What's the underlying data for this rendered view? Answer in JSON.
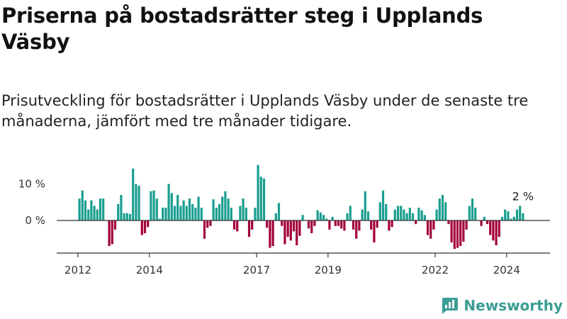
{
  "title": "Priserna på bostadsrätter steg i Upplands Väsby",
  "subtitle": "Prisutveckling för bostadsrätter i Upplands Väsby under de senaste tre månaderna, jämfört med tre månader tidigare.",
  "brand": "Newsworthy",
  "colors": {
    "positive": "#1a9e8f",
    "negative": "#a3003a",
    "axis": "#333333",
    "brand": "#3a9d93"
  },
  "chart_data": {
    "type": "bar",
    "title": "Priserna på bostadsrätter steg i Upplands Väsby",
    "ylabel": "",
    "xlabel": "",
    "ylim": [
      -9.5,
      16
    ],
    "yticks": [
      {
        "value": 0,
        "label": "0 %"
      },
      {
        "value": 10,
        "label": "10 %"
      }
    ],
    "x_start": 2012.0,
    "x_step_months": 1,
    "xticks": [
      {
        "value": 2012,
        "label": "2012"
      },
      {
        "value": 2014,
        "label": "2014"
      },
      {
        "value": 2017,
        "label": "2017"
      },
      {
        "value": 2019,
        "label": "2019"
      },
      {
        "value": 2022,
        "label": "2022"
      },
      {
        "value": 2024,
        "label": "2024"
      }
    ],
    "annotation": {
      "label": "2 %",
      "value": 2
    },
    "values": [
      6,
      8.2,
      5.5,
      3,
      5.5,
      4,
      3,
      6,
      6,
      0,
      -7,
      -6.5,
      -2.5,
      4.5,
      7,
      2,
      2,
      1.8,
      14.2,
      10,
      9.5,
      -4,
      -3.5,
      -1.8,
      8,
      8.2,
      6,
      0.5,
      3.5,
      3.5,
      10,
      7.5,
      4,
      7,
      4,
      5.5,
      4,
      6,
      4.5,
      3.5,
      6.5,
      3.5,
      -5,
      -2,
      -1.5,
      5.8,
      3.5,
      4.5,
      6.5,
      8,
      6,
      3.5,
      -2.5,
      -3,
      4,
      6,
      3.5,
      -4.5,
      -2.5,
      3.5,
      15.2,
      12,
      11.5,
      -2,
      -7.5,
      -7,
      2,
      4.8,
      -1.5,
      -6.5,
      -4.5,
      -5.5,
      -3,
      -6.8,
      -4.2,
      1.5,
      0,
      -2.2,
      -3.5,
      -1.5,
      2.8,
      2.2,
      1.5,
      0.5,
      -2.5,
      1,
      -1.5,
      -1.5,
      -2.2,
      -2.8,
      2,
      4,
      -2.5,
      -5,
      -2.8,
      3,
      8,
      2.5,
      -2.5,
      -6,
      -2,
      5,
      8.2,
      4.5,
      -2.8,
      -1.8,
      3,
      4,
      4,
      3,
      2,
      3.5,
      2,
      -1,
      3.5,
      2.8,
      1.5,
      -4,
      -5,
      -2.5,
      3,
      6,
      7,
      5,
      -1,
      -6,
      -7.8,
      -7.5,
      -7,
      -5.8,
      -2.5,
      4,
      6,
      3.5,
      0,
      -1.5,
      1,
      -1,
      -4,
      -5.5,
      -6.8,
      -4.5,
      1,
      3,
      2.5,
      0.5,
      1,
      3,
      4,
      2
    ]
  }
}
